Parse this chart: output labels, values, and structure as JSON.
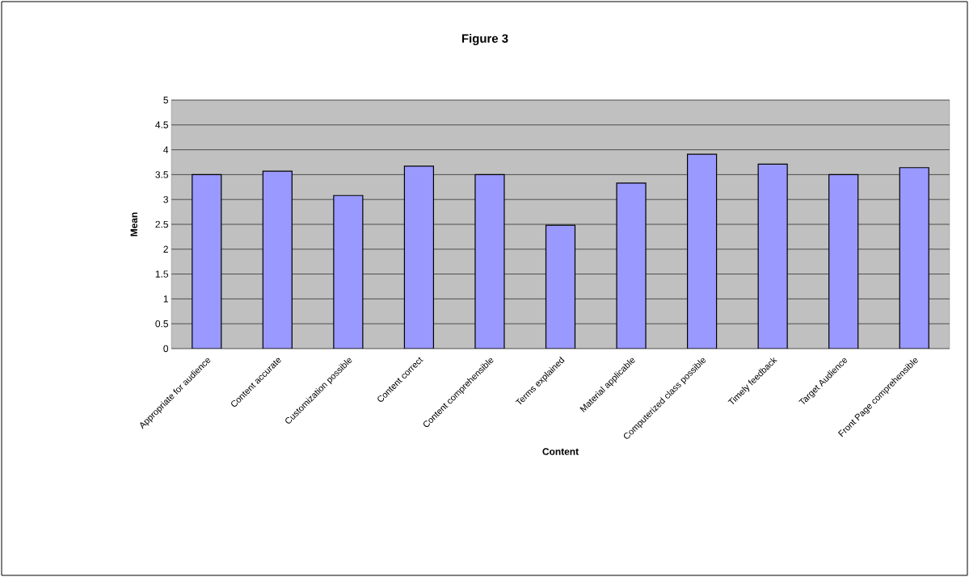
{
  "chart_data": {
    "type": "bar",
    "title": "Figure 3",
    "xlabel": "Content",
    "ylabel": "Mean",
    "categories": [
      "Appropriate for audience",
      "Content accurate",
      "Customization possible",
      "Content correct",
      "Content comprehensible",
      "Terms explained",
      "Material applicable",
      "Computerized class possible",
      "Timely feedback",
      "Target Audience",
      "Front Page comprehensible"
    ],
    "values": [
      3.5,
      3.57,
      3.08,
      3.67,
      3.5,
      2.48,
      3.33,
      3.91,
      3.71,
      3.5,
      3.64
    ],
    "color": "#9999ff",
    "ylim": [
      0,
      5
    ],
    "yticks": [
      0,
      0.5,
      1,
      1.5,
      2,
      2.5,
      3,
      3.5,
      4,
      4.5,
      5
    ],
    "grid": true
  }
}
